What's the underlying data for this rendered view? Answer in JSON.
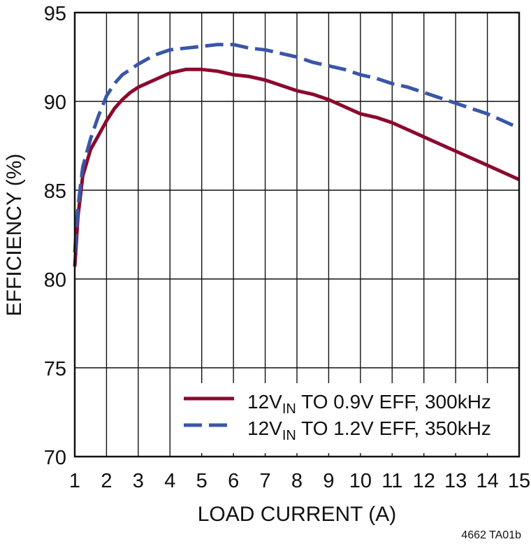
{
  "chart_data": {
    "type": "line",
    "xlabel": "LOAD CURRENT (A)",
    "ylabel": "EFFICIENCY (%)",
    "xlim": [
      1,
      15
    ],
    "ylim": [
      70,
      95
    ],
    "x_ticks": [
      1,
      2,
      3,
      4,
      5,
      6,
      7,
      8,
      9,
      10,
      11,
      12,
      13,
      14,
      15
    ],
    "y_ticks": [
      70,
      75,
      80,
      85,
      90,
      95
    ],
    "grid": true,
    "legend_position": "bottom-right",
    "series": [
      {
        "label_main": "12V",
        "label_sub": "IN",
        "label_rest": " TO 0.9V EFF, 300kHz",
        "color": "#8b0a2e",
        "style": "solid",
        "x": [
          1.0,
          1.1,
          1.25,
          1.5,
          1.75,
          2.0,
          2.25,
          2.5,
          2.75,
          3.0,
          3.5,
          4.0,
          4.5,
          5.0,
          5.5,
          6.0,
          6.5,
          7.0,
          7.5,
          8.0,
          8.5,
          9.0,
          9.5,
          10.0,
          10.5,
          11.0,
          11.5,
          12.0,
          12.5,
          13.0,
          13.5,
          14.0,
          14.5,
          15.0
        ],
        "y": [
          80.7,
          83.5,
          85.8,
          87.3,
          88.1,
          88.9,
          89.6,
          90.1,
          90.5,
          90.8,
          91.2,
          91.6,
          91.8,
          91.8,
          91.7,
          91.5,
          91.4,
          91.2,
          90.9,
          90.6,
          90.4,
          90.1,
          89.7,
          89.3,
          89.1,
          88.8,
          88.4,
          88.0,
          87.6,
          87.2,
          86.8,
          86.4,
          86.0,
          85.6
        ]
      },
      {
        "label_main": "12V",
        "label_sub": "IN",
        "label_rest": " TO 1.2V EFF, 350kHz",
        "color": "#3a56a8",
        "style": "dashed",
        "x": [
          1.0,
          1.1,
          1.25,
          1.5,
          1.75,
          2.0,
          2.25,
          2.5,
          2.75,
          3.0,
          3.5,
          4.0,
          4.5,
          5.0,
          5.5,
          6.0,
          6.5,
          7.0,
          7.5,
          8.0,
          8.5,
          9.0,
          9.5,
          10.0,
          10.5,
          11.0,
          11.5,
          12.0,
          12.5,
          13.0,
          13.5,
          14.0,
          14.5,
          15.0
        ],
        "y": [
          81.5,
          84.0,
          86.3,
          87.9,
          89.2,
          90.3,
          91.0,
          91.5,
          91.8,
          92.1,
          92.6,
          92.9,
          93.0,
          93.1,
          93.2,
          93.2,
          93.0,
          92.9,
          92.7,
          92.5,
          92.2,
          92.0,
          91.8,
          91.5,
          91.3,
          91.0,
          90.8,
          90.5,
          90.2,
          89.9,
          89.6,
          89.3,
          88.9,
          88.5
        ]
      }
    ]
  },
  "figure_code": "4662 TA01b"
}
